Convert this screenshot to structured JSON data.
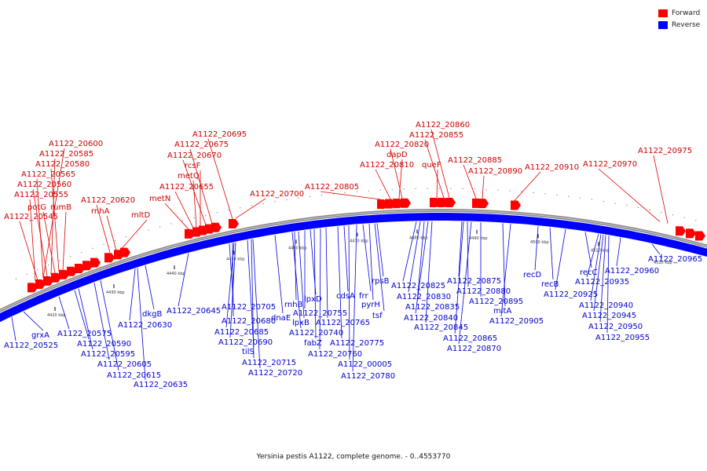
{
  "caption": "Yersinia pestis A1122, complete genome. - 0..4553770",
  "legend": [
    {
      "label": "Forward",
      "color": "#ff0000"
    },
    {
      "label": "Reverse",
      "color": "#0000ff"
    }
  ],
  "colors": {
    "forward": "#ff0000",
    "reverse": "#0000ff",
    "forward_text": "#cc0000",
    "reverse_text": "#0000cc",
    "backbone": "#888888"
  },
  "ticks": [
    "4420 kbp",
    "4430 kbp",
    "4440 kbp",
    "4450 kbp",
    "4460 kbp",
    "4470 kbp",
    "4480 kbp",
    "4490 kbp",
    "4500 kbp",
    "4510 kbp",
    "4520 kbp"
  ],
  "forward_labels": [
    "A1122_20600",
    "A1122_20585",
    "A1122_20580",
    "A1122_20565",
    "A1122_20560",
    "A1122_20555",
    "potG",
    "rumB",
    "A1122_20545",
    "A1122_20620",
    "rnhA",
    "mltD",
    "A1122_20695",
    "A1122_20675",
    "A1122_20670",
    "rcsF",
    "metQ",
    "A1122_20655",
    "metN",
    "A1122_20700",
    "A1122_20805",
    "A1122_20820",
    "dapD",
    "A1122_20810",
    "A1122_20860",
    "A1122_20855",
    "queF",
    "A1122_20885",
    "A1122_20890",
    "A1122_20910",
    "A1122_20975",
    "A1122_20970"
  ],
  "reverse_labels": [
    "grxA",
    "A1122_20525",
    "A1122_20575",
    "A1122_20590",
    "A1122_20595",
    "A1122_20605",
    "A1122_20615",
    "A1122_20635",
    "dkgB",
    "A1122_20630",
    "A1122_20645",
    "A1122_20705",
    "A1122_20680",
    "A1122_20685",
    "A1122_20690",
    "tilS",
    "A1122_20715",
    "A1122_20720",
    "rnhB",
    "dnaE",
    "lpxD",
    "lpxB",
    "A1122_20755",
    "A1122_20740",
    "A1122_20765",
    "fabZ",
    "A1122_20760",
    "A1122_20775",
    "cdsA",
    "frr",
    "rpsB",
    "pyrH",
    "tsf",
    "A1122_00005",
    "A1122_20780",
    "A1122_20825",
    "A1122_20830",
    "A1122_20835",
    "A1122_20840",
    "A1122_20845",
    "A1122_20865",
    "A1122_20870",
    "A1122_20875",
    "A1122_20880",
    "A1122_20895",
    "mltA",
    "A1122_20905",
    "recD",
    "recB",
    "A1122_20925",
    "recC",
    "A1122_20935",
    "A1122_20940",
    "A1122_20945",
    "A1122_20950",
    "A1122_20955",
    "A1122_20960",
    "A1122_20965"
  ]
}
